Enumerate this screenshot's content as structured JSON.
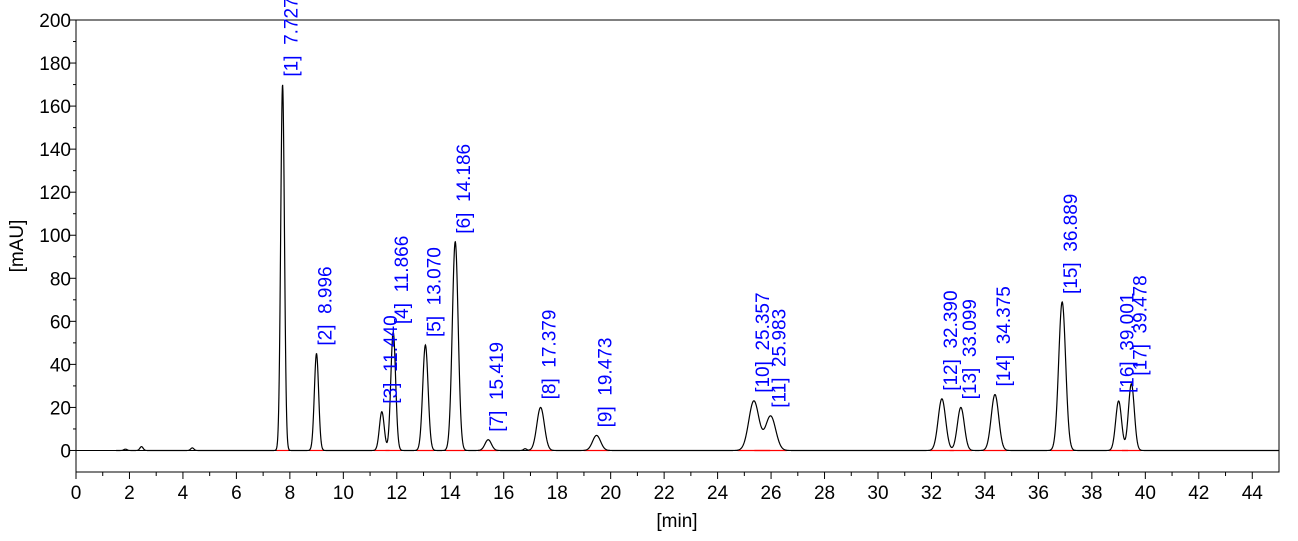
{
  "chart_data": {
    "type": "line",
    "xlabel": "[min]",
    "ylabel": "[mAU]",
    "xlim": [
      0,
      45
    ],
    "ylim": [
      -10,
      200
    ],
    "x_ticks": [
      0,
      2,
      4,
      6,
      8,
      10,
      12,
      14,
      16,
      18,
      20,
      22,
      24,
      26,
      28,
      30,
      32,
      34,
      36,
      38,
      40,
      42,
      44
    ],
    "y_ticks": [
      0,
      20,
      40,
      60,
      80,
      100,
      120,
      140,
      160,
      180,
      200
    ],
    "grid": false,
    "colors": {
      "trace": "#000000",
      "labels": "#0000ff",
      "baseline": "#ff0000"
    },
    "peaks": [
      {
        "label": "[1]  7.727",
        "rt": 7.727,
        "height": 170,
        "width": 0.07
      },
      {
        "label": "[2]  8.996",
        "rt": 8.996,
        "height": 45,
        "width": 0.08
      },
      {
        "label": "[3]  11.440",
        "rt": 11.44,
        "height": 18,
        "width": 0.09
      },
      {
        "label": "[4]  11.866",
        "rt": 11.866,
        "height": 55,
        "width": 0.09
      },
      {
        "label": "[5]  13.070",
        "rt": 13.07,
        "height": 49,
        "width": 0.1
      },
      {
        "label": "[6]  14.186",
        "rt": 14.186,
        "height": 97,
        "width": 0.11
      },
      {
        "label": "[7]  15.419",
        "rt": 15.419,
        "height": 5,
        "width": 0.12
      },
      {
        "label": "[8]  17.379",
        "rt": 17.379,
        "height": 20,
        "width": 0.14
      },
      {
        "label": "[9]  19.473",
        "rt": 19.473,
        "height": 7,
        "width": 0.15
      },
      {
        "label": "[10]  25.357",
        "rt": 25.357,
        "height": 23,
        "width": 0.19
      },
      {
        "label": "[11]  25.983",
        "rt": 25.983,
        "height": 16,
        "width": 0.19
      },
      {
        "label": "[12]  32.390",
        "rt": 32.39,
        "height": 24,
        "width": 0.14
      },
      {
        "label": "[13]  33.099",
        "rt": 33.099,
        "height": 20,
        "width": 0.13
      },
      {
        "label": "[14]  34.375",
        "rt": 34.375,
        "height": 26,
        "width": 0.14
      },
      {
        "label": "[15]  36.889",
        "rt": 36.889,
        "height": 69,
        "width": 0.13
      },
      {
        "label": "[16]  39.001",
        "rt": 39.001,
        "height": 23,
        "width": 0.11
      },
      {
        "label": "[17]  39.478",
        "rt": 39.478,
        "height": 31,
        "width": 0.11
      }
    ],
    "minor_peaks": [
      {
        "rt": 1.85,
        "height": 0.6
      },
      {
        "rt": 2.45,
        "height": 1.8
      },
      {
        "rt": 4.35,
        "height": 1.2
      },
      {
        "rt": 16.8,
        "height": 0.8
      }
    ]
  }
}
